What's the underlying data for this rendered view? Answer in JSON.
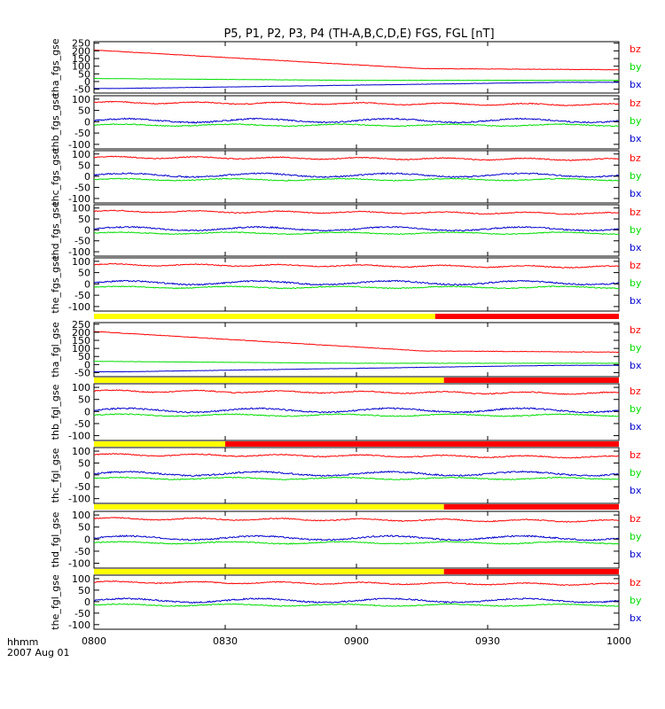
{
  "title": "P5, P1, P2, P3, P4 (TH-A,B,C,D,E) FGS, FGL [nT]",
  "colors": {
    "bz": "#ff0000",
    "by": "#00dd00",
    "bx": "#0000cc",
    "bar_yellow": "#ffff00",
    "bar_red": "#ff0000"
  },
  "xaxis": {
    "range": [
      "0800",
      "1000"
    ],
    "ticks": [
      "0800",
      "0830",
      "0900",
      "0930",
      "1000"
    ],
    "label_line1": "hhmm",
    "label_line2": "2007 Aug 01"
  },
  "chart_data": [
    {
      "type": "line",
      "panel": "tha_fgs_gse",
      "ylabel": "tha_fgs_gse",
      "ylim": [
        -75,
        260
      ],
      "yticks": [
        "250",
        "200",
        "150",
        "100",
        "50",
        "0",
        "-50"
      ],
      "tick_values": [
        250,
        200,
        150,
        100,
        50,
        0,
        -50
      ],
      "legend": [
        "bz",
        "by",
        "bx"
      ],
      "profile": "sw"
    },
    {
      "type": "line",
      "panel": "thb_fgs_gse",
      "ylabel": "thb_fgs_gse",
      "ylim": [
        -120,
        115
      ],
      "yticks": [
        "100",
        "50",
        "0",
        "-50",
        "-100"
      ],
      "tick_values": [
        100,
        50,
        0,
        -50,
        -100
      ],
      "legend": [
        "bz",
        "by",
        "bx"
      ],
      "profile": "b"
    },
    {
      "type": "line",
      "panel": "thc_fgs_gse",
      "ylabel": "thc_fgs_gse",
      "ylim": [
        -120,
        115
      ],
      "yticks": [
        "100",
        "50",
        "0",
        "-50",
        "-100"
      ],
      "tick_values": [
        100,
        50,
        0,
        -50,
        -100
      ],
      "legend": [
        "bz",
        "by",
        "bx"
      ],
      "profile": "c"
    },
    {
      "type": "line",
      "panel": "thd_fgs_gse",
      "ylabel": "thd_fgs_gse",
      "ylim": [
        -120,
        115
      ],
      "yticks": [
        "100",
        "50",
        "0",
        "-50",
        "-100"
      ],
      "tick_values": [
        100,
        50,
        0,
        -50,
        -100
      ],
      "legend": [
        "bz",
        "by",
        "bx"
      ],
      "profile": "c"
    },
    {
      "type": "line",
      "panel": "the_fgs_gse",
      "ylabel": "the_fgs_gse",
      "ylim": [
        -120,
        115
      ],
      "yticks": [
        "100",
        "50",
        "0",
        "-50",
        "-100"
      ],
      "tick_values": [
        100,
        50,
        0,
        -50,
        -100
      ],
      "legend": [
        "bz",
        "by",
        "bx"
      ],
      "profile": "e"
    },
    {
      "type": "line",
      "panel": "tha_fgl_gse",
      "ylabel": "tha_fgl_gse",
      "ylim": [
        -75,
        260
      ],
      "yticks": [
        "250",
        "200",
        "150",
        "100",
        "50",
        "0",
        "-50"
      ],
      "tick_values": [
        250,
        200,
        150,
        100,
        50,
        0,
        -50
      ],
      "legend": [
        "bz",
        "by",
        "bx"
      ],
      "profile": "sw",
      "bar_yellow_until": "0920"
    },
    {
      "type": "line",
      "panel": "thb_fgl_gse",
      "ylabel": "thb_fgl_gse",
      "ylim": [
        -120,
        115
      ],
      "yticks": [
        "100",
        "50",
        "0",
        "-50",
        "-100"
      ],
      "tick_values": [
        100,
        50,
        0,
        -50,
        -100
      ],
      "legend": [
        "bz",
        "by",
        "bx"
      ],
      "profile": "b",
      "bar_yellow_until": "0920"
    },
    {
      "type": "line",
      "panel": "thc_fgl_gse",
      "ylabel": "thc_fgl_gse",
      "ylim": [
        -120,
        115
      ],
      "yticks": [
        "100",
        "50",
        "0",
        "-50",
        "-100"
      ],
      "tick_values": [
        100,
        50,
        0,
        -50,
        -100
      ],
      "legend": [
        "bz",
        "by",
        "bx"
      ],
      "profile": "c",
      "bar_yellow_until": "0830"
    },
    {
      "type": "line",
      "panel": "thd_fgl_gse",
      "ylabel": "thd_fgl_gse",
      "ylim": [
        -120,
        115
      ],
      "yticks": [
        "100",
        "50",
        "0",
        "-50",
        "-100"
      ],
      "tick_values": [
        100,
        50,
        0,
        -50,
        -100
      ],
      "legend": [
        "bz",
        "by",
        "bx"
      ],
      "profile": "c",
      "bar_yellow_until": "0920"
    },
    {
      "type": "line",
      "panel": "the_fgl_gse",
      "ylabel": "the_fgl_gse",
      "ylim": [
        -120,
        115
      ],
      "yticks": [
        "100",
        "50",
        "0",
        "-50",
        "-100"
      ],
      "tick_values": [
        100,
        50,
        0,
        -50,
        -100
      ],
      "legend": [
        "bz",
        "by",
        "bx"
      ],
      "profile": "e",
      "bar_yellow_until": "0920"
    }
  ],
  "final_bar_yellow_until": "0918"
}
